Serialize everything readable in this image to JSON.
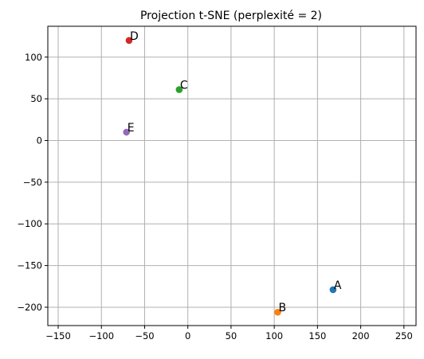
{
  "chart_data": {
    "type": "scatter",
    "title": "Projection t-SNE (perplexité = 2)",
    "xlabel": "",
    "ylabel": "",
    "xlim": [
      -162,
      264
    ],
    "ylim": [
      -222,
      137
    ],
    "xticks": [
      -150,
      -100,
      -50,
      0,
      50,
      100,
      150,
      200,
      250
    ],
    "yticks": [
      -200,
      -150,
      -100,
      -50,
      0,
      50,
      100
    ],
    "xtick_labels": [
      "−150",
      "−100",
      "−50",
      "0",
      "50",
      "100",
      "150",
      "200",
      "250"
    ],
    "ytick_labels": [
      "−200",
      "−150",
      "−100",
      "−50",
      "0",
      "50",
      "100"
    ],
    "grid": true,
    "points": [
      {
        "label": "A",
        "x": 168,
        "y": -179,
        "color": "#1f77b4"
      },
      {
        "label": "B",
        "x": 104,
        "y": -206,
        "color": "#ff7f0e"
      },
      {
        "label": "C",
        "x": -10,
        "y": 61,
        "color": "#2ca02c"
      },
      {
        "label": "D",
        "x": -68,
        "y": 120,
        "color": "#d62728"
      },
      {
        "label": "E",
        "x": -71,
        "y": 10,
        "color": "#9467bd"
      }
    ]
  }
}
